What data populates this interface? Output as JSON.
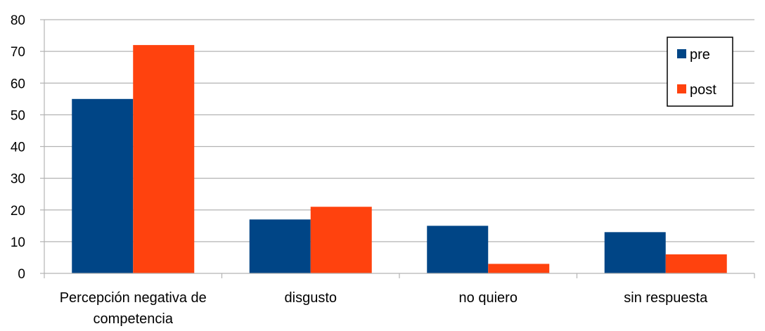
{
  "chart_data": {
    "type": "bar",
    "categories": [
      [
        "Percepción negativa de",
        "competencia"
      ],
      [
        "disgusto"
      ],
      [
        "no quiero"
      ],
      [
        "sin respuesta"
      ]
    ],
    "series": [
      {
        "name": "pre",
        "values": [
          55,
          17,
          15,
          13
        ]
      },
      {
        "name": "post",
        "values": [
          72,
          21,
          3,
          6
        ]
      }
    ],
    "ylim": [
      0,
      80
    ],
    "yticks": [
      0,
      10,
      20,
      30,
      40,
      50,
      60,
      70,
      80
    ],
    "grid": true,
    "legend_position": "top-right"
  },
  "colors": {
    "pre": "#004586",
    "post": "#ff420e",
    "grid": "#b3b3b3",
    "axis": "#b3b3b3"
  }
}
